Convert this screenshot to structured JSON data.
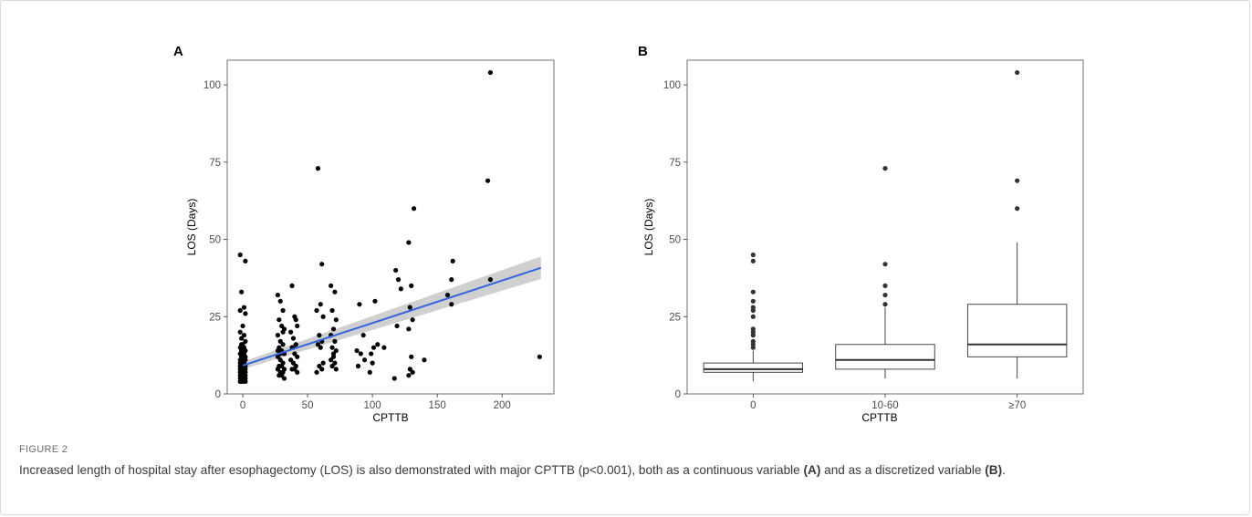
{
  "figure_label": "FIGURE 2",
  "caption": {
    "part1": "Increased length of hospital stay after esophagectomy (LOS) is also demonstrated with major CPTTB (p<0.001), both as a continuous variable ",
    "ref_a": "(A)",
    "part2": " and as a discretized variable ",
    "ref_b": "(B)",
    "part3": "."
  },
  "colors": {
    "fit_line": "#3366e0",
    "confidence_band": "#c8c8c8",
    "points": "#000000",
    "outliers": "#333333"
  },
  "chart_data": [
    {
      "panel": "A",
      "type": "scatter",
      "xlabel": "CPTTB",
      "ylabel": "LOS (Days)",
      "xlim": [
        -12,
        240
      ],
      "ylim": [
        0,
        108
      ],
      "xticks": [
        0,
        50,
        100,
        150,
        200
      ],
      "yticks": [
        0,
        25,
        50,
        75,
        100
      ],
      "grid": false,
      "trend_line": {
        "x": [
          0,
          230
        ],
        "y": [
          9.2,
          40.8
        ]
      },
      "confidence_band": {
        "x": [
          0,
          230
        ],
        "lower": [
          8.0,
          37.2
        ],
        "upper": [
          10.4,
          44.5
        ]
      },
      "points": [
        [
          -2,
          45
        ],
        [
          2,
          43
        ],
        [
          -1,
          33
        ],
        [
          1,
          28
        ],
        [
          -2,
          27
        ],
        [
          2,
          26
        ],
        [
          0,
          22
        ],
        [
          -2,
          20
        ],
        [
          1,
          19
        ],
        [
          -1,
          18
        ],
        [
          2,
          17
        ],
        [
          0,
          16
        ],
        [
          -2,
          15
        ],
        [
          1,
          15
        ],
        [
          -1,
          14
        ],
        [
          2,
          14
        ],
        [
          0,
          13
        ],
        [
          -2,
          13
        ],
        [
          1,
          12
        ],
        [
          -1,
          12
        ],
        [
          2,
          11
        ],
        [
          0,
          11
        ],
        [
          -2,
          10
        ],
        [
          1,
          10
        ],
        [
          -1,
          10
        ],
        [
          2,
          9
        ],
        [
          0,
          9
        ],
        [
          -2,
          9
        ],
        [
          1,
          8
        ],
        [
          -1,
          8
        ],
        [
          2,
          8
        ],
        [
          0,
          8
        ],
        [
          -2,
          7
        ],
        [
          1,
          7
        ],
        [
          -1,
          7
        ],
        [
          2,
          7
        ],
        [
          0,
          6
        ],
        [
          -2,
          6
        ],
        [
          1,
          6
        ],
        [
          -1,
          6
        ],
        [
          2,
          5
        ],
        [
          0,
          5
        ],
        [
          -2,
          5
        ],
        [
          1,
          5
        ],
        [
          -1,
          4
        ],
        [
          2,
          4
        ],
        [
          0,
          4
        ],
        [
          -2,
          4
        ],
        [
          1,
          13
        ],
        [
          -1,
          16
        ],
        [
          2,
          12
        ],
        [
          0,
          10
        ],
        [
          -2,
          11
        ],
        [
          1,
          9
        ],
        [
          -1,
          9
        ],
        [
          2,
          6
        ],
        [
          0,
          7
        ],
        [
          -2,
          8
        ],
        [
          1,
          14
        ],
        [
          -1,
          11
        ],
        [
          27,
          32
        ],
        [
          29,
          30
        ],
        [
          31,
          27
        ],
        [
          28,
          24
        ],
        [
          30,
          22
        ],
        [
          32,
          21
        ],
        [
          27,
          19
        ],
        [
          29,
          17
        ],
        [
          31,
          16
        ],
        [
          28,
          15
        ],
        [
          30,
          14
        ],
        [
          32,
          13
        ],
        [
          27,
          12
        ],
        [
          29,
          11
        ],
        [
          31,
          10
        ],
        [
          28,
          9
        ],
        [
          30,
          9
        ],
        [
          32,
          8
        ],
        [
          27,
          8
        ],
        [
          29,
          7
        ],
        [
          31,
          7
        ],
        [
          28,
          6
        ],
        [
          30,
          6
        ],
        [
          32,
          5
        ],
        [
          29,
          13
        ],
        [
          31,
          20
        ],
        [
          27,
          14
        ],
        [
          38,
          35
        ],
        [
          40,
          25
        ],
        [
          42,
          22
        ],
        [
          37,
          20
        ],
        [
          39,
          18
        ],
        [
          41,
          16
        ],
        [
          38,
          15
        ],
        [
          40,
          13
        ],
        [
          42,
          12
        ],
        [
          37,
          11
        ],
        [
          39,
          10
        ],
        [
          41,
          9
        ],
        [
          38,
          8
        ],
        [
          40,
          8
        ],
        [
          42,
          7
        ],
        [
          39,
          15
        ],
        [
          41,
          24
        ],
        [
          58,
          73
        ],
        [
          61,
          42
        ],
        [
          60,
          29
        ],
        [
          57,
          27
        ],
        [
          62,
          25
        ],
        [
          59,
          19
        ],
        [
          61,
          17
        ],
        [
          58,
          16
        ],
        [
          60,
          15
        ],
        [
          62,
          10
        ],
        [
          59,
          9
        ],
        [
          61,
          8
        ],
        [
          57,
          7
        ],
        [
          68,
          35
        ],
        [
          71,
          33
        ],
        [
          69,
          27
        ],
        [
          72,
          24
        ],
        [
          70,
          21
        ],
        [
          68,
          19
        ],
        [
          71,
          17
        ],
        [
          69,
          15
        ],
        [
          72,
          14
        ],
        [
          70,
          13
        ],
        [
          68,
          11
        ],
        [
          71,
          10
        ],
        [
          69,
          9
        ],
        [
          72,
          8
        ],
        [
          70,
          12
        ],
        [
          90,
          29
        ],
        [
          93,
          19
        ],
        [
          88,
          14
        ],
        [
          91,
          13
        ],
        [
          94,
          11
        ],
        [
          89,
          9
        ],
        [
          99,
          13
        ],
        [
          102,
          30
        ],
        [
          100,
          10
        ],
        [
          98,
          7
        ],
        [
          104,
          16
        ],
        [
          101,
          15
        ],
        [
          109,
          15
        ],
        [
          118,
          40
        ],
        [
          120,
          37
        ],
        [
          122,
          34
        ],
        [
          119,
          22
        ],
        [
          117,
          5
        ],
        [
          128,
          49
        ],
        [
          130,
          35
        ],
        [
          129,
          28
        ],
        [
          131,
          24
        ],
        [
          128,
          21
        ],
        [
          130,
          12
        ],
        [
          129,
          8
        ],
        [
          131,
          7
        ],
        [
          128,
          6
        ],
        [
          132,
          60
        ],
        [
          140,
          11
        ],
        [
          158,
          32
        ],
        [
          161,
          37
        ],
        [
          162,
          43
        ],
        [
          161,
          29
        ],
        [
          189,
          69
        ],
        [
          191,
          104
        ],
        [
          191,
          37
        ],
        [
          229,
          12
        ]
      ]
    },
    {
      "panel": "B",
      "type": "box",
      "xlabel": "CPTTB",
      "ylabel": "LOS (Days)",
      "ylim": [
        0,
        108
      ],
      "yticks": [
        0,
        25,
        50,
        75,
        100
      ],
      "categories": [
        "0",
        "10-60",
        "≥70"
      ],
      "boxes": [
        {
          "whisker_low": 4,
          "q1": 7,
          "median": 8,
          "q3": 10,
          "whisker_high": 14,
          "outliers": [
            45,
            43,
            33,
            30,
            28,
            27,
            25,
            21,
            20,
            19,
            17,
            16,
            15
          ]
        },
        {
          "whisker_low": 5,
          "q1": 8,
          "median": 11,
          "q3": 16,
          "whisker_high": 28,
          "outliers": [
            73,
            42,
            35,
            32,
            29
          ]
        },
        {
          "whisker_low": 5,
          "q1": 12,
          "median": 16,
          "q3": 29,
          "whisker_high": 49,
          "outliers": [
            104,
            69,
            60
          ]
        }
      ]
    }
  ]
}
